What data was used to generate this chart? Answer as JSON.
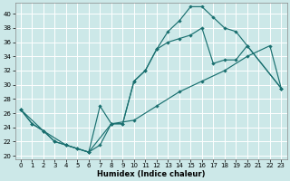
{
  "xlabel": "Humidex (Indice chaleur)",
  "bg_color": "#cce8e8",
  "grid_color": "#ffffff",
  "line_color": "#1a7070",
  "xlim": [
    -0.5,
    23.5
  ],
  "ylim": [
    19.5,
    41.5
  ],
  "xticks": [
    0,
    1,
    2,
    3,
    4,
    5,
    6,
    7,
    8,
    9,
    10,
    11,
    12,
    13,
    14,
    15,
    16,
    17,
    18,
    19,
    20,
    21,
    22,
    23
  ],
  "yticks": [
    20,
    22,
    24,
    26,
    28,
    30,
    32,
    34,
    36,
    38,
    40
  ],
  "line1_x": [
    0,
    1,
    2,
    3,
    4,
    5,
    6,
    7,
    8,
    9,
    10,
    11,
    12,
    13,
    14,
    15,
    16,
    17,
    18,
    19,
    20,
    23
  ],
  "line1_y": [
    26.5,
    24.5,
    23.5,
    22.0,
    21.5,
    21.0,
    20.5,
    27.0,
    24.5,
    24.5,
    30.5,
    32.0,
    35.0,
    37.5,
    39.0,
    41.0,
    41.0,
    39.5,
    38.0,
    37.5,
    35.5,
    29.5
  ],
  "line2_x": [
    0,
    1,
    2,
    3,
    4,
    5,
    6,
    7,
    8,
    9,
    10,
    11,
    12,
    13,
    14,
    15,
    16,
    17,
    18,
    19,
    20,
    23
  ],
  "line2_y": [
    26.5,
    24.5,
    23.5,
    22.0,
    21.5,
    21.0,
    20.5,
    21.5,
    24.5,
    24.5,
    30.5,
    32.0,
    35.0,
    36.0,
    36.5,
    37.0,
    38.0,
    33.0,
    33.5,
    33.5,
    35.5,
    29.5
  ],
  "line3_x": [
    0,
    2,
    4,
    6,
    8,
    10,
    12,
    14,
    16,
    18,
    20,
    22,
    23
  ],
  "line3_y": [
    26.5,
    23.5,
    21.5,
    20.5,
    24.5,
    25.0,
    27.0,
    29.0,
    30.5,
    32.0,
    34.0,
    35.5,
    29.5
  ]
}
